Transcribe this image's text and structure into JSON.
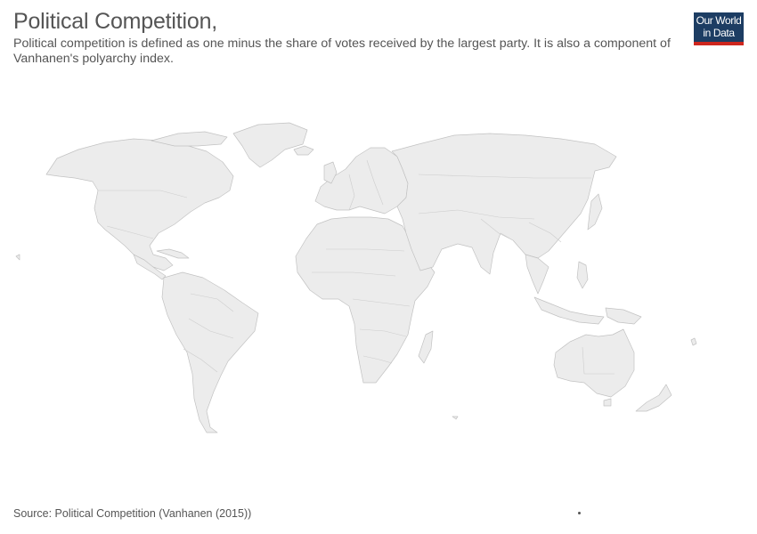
{
  "header": {
    "title": "Political Competition,",
    "subtitle": "Political competition is defined as one minus the share of votes received by the largest party. It is also a component of Vanhanen's polyarchy index."
  },
  "logo": {
    "line1": "Our World",
    "line2": "in Data"
  },
  "footer": {
    "source": "Source: Political Competition (Vanhanen (2015))"
  },
  "colors": {
    "land": "#ececec",
    "land_border": "#c2c2c2",
    "text": "#555555",
    "logo_bg": "#1d3d63",
    "logo_bar": "#ce261e"
  }
}
